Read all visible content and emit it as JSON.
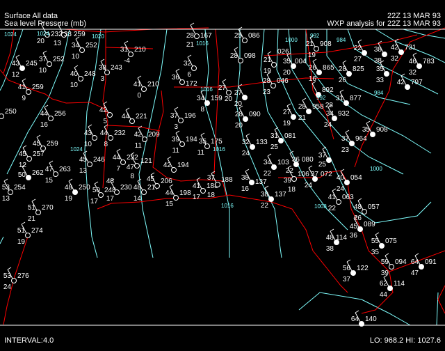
{
  "header": {
    "line1_left": "Surface All data",
    "line2_left": "Sea level Pressure (mb)",
    "line1_right": "22Z 13 MAR 93",
    "line2_right": "WXP analysis for 22Z 13 MAR 93"
  },
  "footer": {
    "interval_label": "INTERVAL:",
    "interval_value": "4.0",
    "lo_hi": "LO: 968.2  HI: 1027.6"
  },
  "colors": {
    "background": "#000000",
    "borders": "#ff0000",
    "isobars": "#80ffff",
    "stations": "#ffffff",
    "weather": "#ffff00"
  },
  "isobar_labels": [
    "1024",
    "1024",
    "1020",
    "1016",
    "1016",
    "1016",
    "1016",
    "1024",
    "1000",
    "992",
    "984",
    "992",
    "984",
    "1008",
    "1000"
  ],
  "stations": [
    {
      "t": "",
      "p": "232",
      "d": "20",
      "filled": false
    },
    {
      "t": "33",
      "p": "259",
      "d": "13",
      "filled": false
    },
    {
      "t": "34",
      "p": "252",
      "d": "10",
      "filled": false
    },
    {
      "t": "43",
      "p": "245",
      "d": "12",
      "filled": true
    },
    {
      "t": "37",
      "p": "252",
      "d": "10",
      "filled": false
    },
    {
      "t": "40",
      "p": "248",
      "d": "10",
      "filled": false
    },
    {
      "t": "38",
      "p": "243",
      "d": "3",
      "filled": false
    },
    {
      "t": "31",
      "p": "210",
      "d": "-4",
      "filled": false
    },
    {
      "t": "41",
      "p": "259",
      "d": "9",
      "filled": false
    },
    {
      "t": "41",
      "p": "210",
      "d": "0",
      "filled": false
    },
    {
      "t": "44",
      "p": "256",
      "d": "16",
      "filled": false
    },
    {
      "t": "",
      "p": "250",
      "d": "",
      "filled": false
    },
    {
      "t": "42",
      "p": "",
      "d": "5",
      "filled": false
    },
    {
      "t": "44",
      "p": "221",
      "d": "",
      "filled": false
    },
    {
      "t": "44",
      "p": "232",
      "d": "8",
      "filled": false
    },
    {
      "t": "43",
      "p": "",
      "d": "10",
      "filled": false
    },
    {
      "t": "45",
      "p": "259",
      "d": "",
      "filled": false
    },
    {
      "t": "45",
      "p": "257",
      "d": "12",
      "filled": false
    },
    {
      "t": "50",
      "p": "262",
      "d": "",
      "filled": true
    },
    {
      "t": "53",
      "p": "254",
      "d": "13",
      "filled": false
    },
    {
      "t": "47",
      "p": "263",
      "d": "15",
      "filled": false
    },
    {
      "t": "45",
      "p": "246",
      "d": "13",
      "filled": false
    },
    {
      "t": "48",
      "p": "250",
      "d": "19",
      "filled": true
    },
    {
      "t": "50",
      "p": "248",
      "d": "17",
      "filled": false
    },
    {
      "t": "48",
      "p": "230",
      "d": "17",
      "filled": false
    },
    {
      "t": "44",
      "p": "232",
      "d": "7",
      "filled": false
    },
    {
      "t": "47",
      "p": "121",
      "d": "8",
      "filled": false
    },
    {
      "t": "42",
      "p": "209",
      "d": "11",
      "filled": false
    },
    {
      "t": "48",
      "p": "217",
      "d": "14",
      "filled": false
    },
    {
      "t": "51",
      "p": "270",
      "d": "21",
      "filled": false
    },
    {
      "t": "51",
      "p": "274",
      "d": "19",
      "filled": false
    },
    {
      "t": "53",
      "p": "276",
      "d": "24",
      "filled": false
    },
    {
      "t": "37",
      "p": "196",
      "d": "3",
      "filled": false
    },
    {
      "t": "39",
      "p": "194",
      "d": "11",
      "filled": false
    },
    {
      "t": "35",
      "p": "175",
      "d": "11",
      "filled": false
    },
    {
      "t": "42",
      "p": "194",
      "d": "",
      "filled": false
    },
    {
      "t": "45",
      "p": "206",
      "d": "",
      "filled": false
    },
    {
      "t": "44",
      "p": "198",
      "d": "15",
      "filled": false
    },
    {
      "t": "41",
      "p": "188",
      "d": "17",
      "filled": false
    },
    {
      "t": "37",
      "p": "188",
      "d": "18",
      "filled": false
    },
    {
      "t": "34",
      "p": "159",
      "d": "8",
      "filled": true
    },
    {
      "t": "32",
      "p": "",
      "d": "6",
      "filled": false
    },
    {
      "t": "28",
      "p": "167",
      "d": "21",
      "filled": false
    },
    {
      "t": "36",
      "p": "172",
      "d": "",
      "filled": false
    },
    {
      "t": "25",
      "p": "086",
      "d": "",
      "filled": false
    },
    {
      "t": "28",
      "p": "098",
      "d": "",
      "filled": false
    },
    {
      "t": "27",
      "p": "",
      "d": "20",
      "filled": true
    },
    {
      "t": "28",
      "p": "090",
      "d": "20",
      "filled": true
    },
    {
      "t": "32",
      "p": "133",
      "d": "24",
      "filled": true
    },
    {
      "t": "34",
      "p": "103",
      "d": "22",
      "filled": true
    },
    {
      "t": "38",
      "p": "137",
      "d": "16",
      "filled": true
    },
    {
      "t": "38",
      "p": "137",
      "d": "22",
      "filled": true
    },
    {
      "t": "31",
      "p": "081",
      "d": "25",
      "filled": true
    },
    {
      "t": "36",
      "p": "080",
      "d": "22",
      "filled": true
    },
    {
      "t": "39",
      "p": "106",
      "d": "18",
      "filled": false
    },
    {
      "t": "37",
      "p": "072",
      "d": "24",
      "filled": true
    },
    {
      "t": "40",
      "p": "054",
      "d": "24",
      "filled": true
    },
    {
      "t": "41",
      "p": "063",
      "d": "22",
      "filled": false
    },
    {
      "t": "48",
      "p": "057",
      "d": "26",
      "filled": false
    },
    {
      "t": "45",
      "p": "089",
      "d": "36",
      "filled": true
    },
    {
      "t": "48",
      "p": "114",
      "d": "38",
      "filled": true
    },
    {
      "t": "55",
      "p": "075",
      "d": "35",
      "filled": true
    },
    {
      "t": "59",
      "p": "094",
      "d": "39",
      "filled": false
    },
    {
      "t": "64",
      "p": "091",
      "d": "47",
      "filled": true
    },
    {
      "t": "56",
      "p": "122",
      "d": "37",
      "filled": true
    },
    {
      "t": "62",
      "p": "114",
      "d": "44",
      "filled": true
    },
    {
      "t": "64",
      "p": "140",
      "d": "",
      "filled": true
    },
    {
      "t": "37",
      "p": "",
      "d": "25",
      "filled": true
    },
    {
      "t": "37",
      "p": "964",
      "d": "23",
      "filled": true
    },
    {
      "t": "27",
      "p": "",
      "d": "19",
      "filled": true
    },
    {
      "t": "28",
      "p": "958",
      "d": "21",
      "filled": true
    },
    {
      "t": "34",
      "p": "932",
      "d": "24",
      "filled": true
    },
    {
      "t": "35",
      "p": "908",
      "d": "",
      "filled": true
    },
    {
      "t": "31",
      "p": "877",
      "d": "28",
      "filled": true
    },
    {
      "t": "",
      "p": "892",
      "d": "",
      "filled": true
    },
    {
      "t": "28",
      "p": "825",
      "d": "26",
      "filled": true
    },
    {
      "t": "26",
      "p": "865",
      "d": "16",
      "filled": true
    },
    {
      "t": "35",
      "p": "004",
      "d": "20",
      "filled": true
    },
    {
      "t": "21",
      "p": "908",
      "d": "19",
      "filled": false
    },
    {
      "t": "22",
      "p": "",
      "d": "27",
      "filled": true
    },
    {
      "t": "38",
      "p": "",
      "d": "38",
      "filled": true
    },
    {
      "t": "42",
      "p": "731",
      "d": "32",
      "filled": true
    },
    {
      "t": "46",
      "p": "783",
      "d": "32",
      "filled": true
    },
    {
      "t": "42",
      "p": "797",
      "d": "",
      "filled": true
    },
    {
      "t": "35",
      "p": "",
      "d": "33",
      "filled": true
    },
    {
      "t": "27",
      "p": "",
      "d": "20",
      "filled": false
    },
    {
      "t": "28",
      "p": "046",
      "d": "23",
      "filled": false
    },
    {
      "t": "21",
      "p": "026",
      "d": "19",
      "filled": false
    }
  ]
}
